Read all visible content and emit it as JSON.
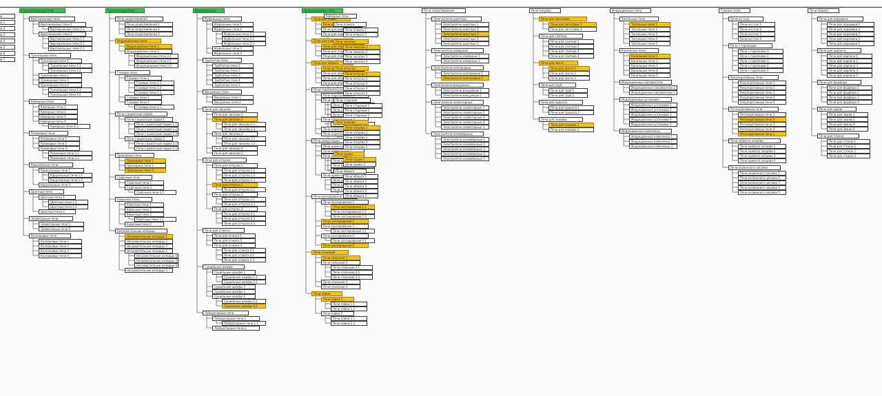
{
  "colors": {
    "root": "#3fbf53",
    "highlight": "#f0c419",
    "node": "#ffffff",
    "line": "#555555"
  },
  "columns": [
    {
      "title": "Горизонтальные печи",
      "root": true,
      "children": [
        "Вертикальные печи",
        "Туннельные печи",
        "Камерные печи",
        "Роликовые печи",
        "Карусельные печи",
        "Шахтные печи",
        "Элеваторные печи",
        "Колпаковые печи"
      ]
    },
    {
      "title": "Термические печи",
      "root": true,
      "children": [
        "Печи сопротивления",
        "Индукционные печи",
        "Газовые печи",
        "Печи с выкатным подом",
        "Проходные печи",
        "Садочные печи",
        "Ковочные печи",
        "Нагревательные колодцы"
      ]
    },
    {
      "title": "Оборудование",
      "root": true,
      "children": [
        "Муфельные печи",
        "Трубчатые печи",
        "Вакуумные печи",
        "Печи для закалки",
        "Печи для отпуска",
        "Печи для отжига",
        "Сушильные шкафы",
        "Лабораторные печи"
      ]
    },
    {
      "title": "Промышленные печи",
      "root": true,
      "children": [
        "Печи для ковки",
        "Печи для плавки",
        "Печи для обжига",
        "Печи нормализации",
        "Печи цементации",
        "Печи азотирования",
        "Печи спекания",
        "Печи пайки"
      ]
    },
    {
      "title": "Камерные печи",
      "root": false,
      "children": [
        "Печи отжига",
        "Печи закалки",
        "Печи отпуска",
        "Печи старения",
        "Печи нагрева",
        "Печи сушки",
        "Печи обжига"
      ]
    },
    {
      "title": "Печи сопротивления",
      "root": false,
      "children": [
        "Электропечи шахтные",
        "Электропечи камерные",
        "Электропечи колпаковые",
        "Электропечи вакуумные",
        "Электропечи элеваторные",
        "Электропечи конвейерные"
      ]
    },
    {
      "title": "Печи нагрева",
      "root": false,
      "children": [
        "Печи для заготовок",
        "Печи для слитков",
        "Печи для листа",
        "Печи для труб",
        "Печи для проката",
        "Печи для поковок"
      ]
    },
    {
      "title": "Индукционные печи",
      "root": false,
      "children": [
        "Тигельные печи",
        "Канальные печи",
        "Индукционные нагреватели",
        "Индукционные установки",
        "Индукционные комплексы"
      ]
    },
    {
      "title": "Газовые печи",
      "root": false,
      "children": [
        "Печи на газе",
        "Печи с горелками",
        "Рекуперативные печи",
        "Регенеративные печи",
        "Печи прямого нагрева",
        "Печи косвенного нагрева"
      ]
    },
    {
      "title": "Печи обжига",
      "root": false,
      "children": [
        "Печи для керамики",
        "Печи для кирпича",
        "Печи для фарфора",
        "Печи для эмали",
        "Печи для стекла"
      ]
    }
  ],
  "highlighted": [
    "Печи для ковки",
    "Печи для плавки",
    "Печи для обжига",
    "Печи закалки",
    "Печи отпуска",
    "Индукционные печи",
    "Печи нагрева",
    "Печи для листа",
    "Печи сушки",
    "Печи для заготовок",
    "Печи спекания",
    "Печи пайки"
  ]
}
